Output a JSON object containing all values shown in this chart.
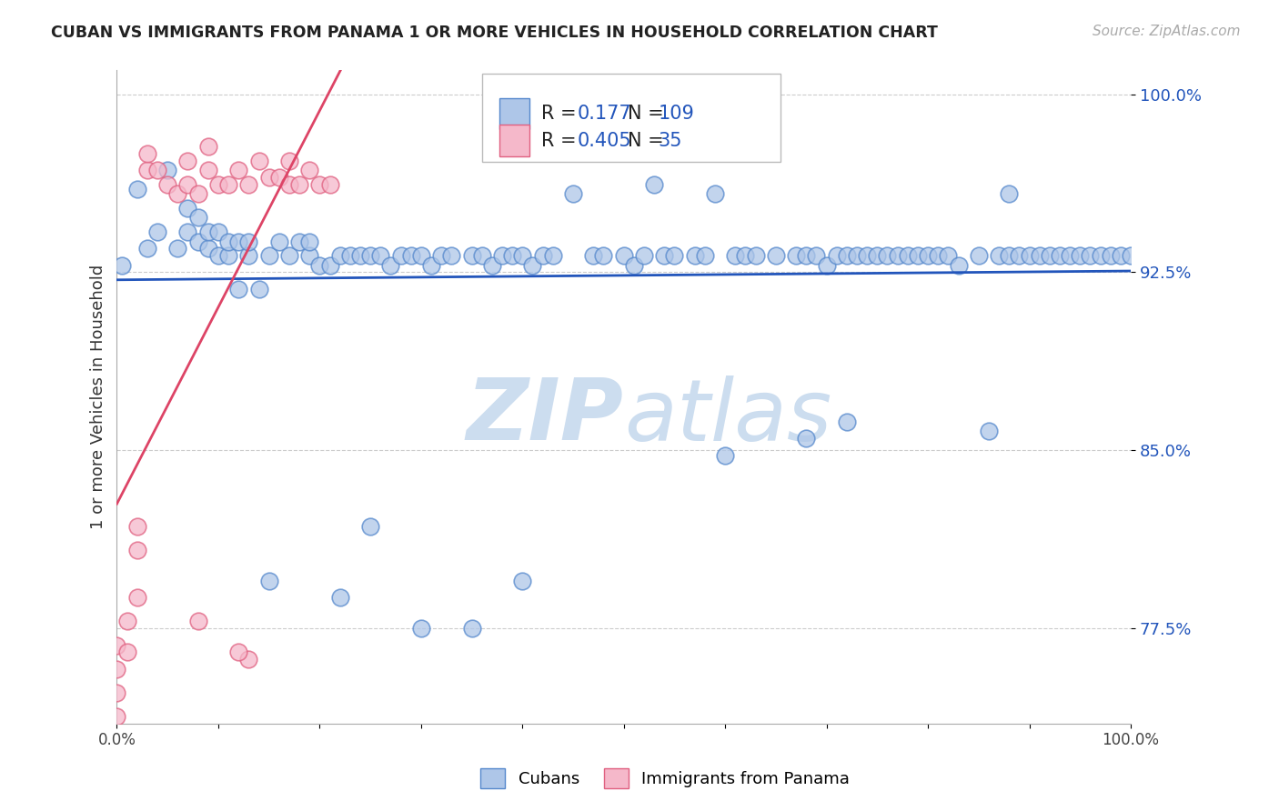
{
  "title": "CUBAN VS IMMIGRANTS FROM PANAMA 1 OR MORE VEHICLES IN HOUSEHOLD CORRELATION CHART",
  "source": "Source: ZipAtlas.com",
  "ylabel": "1 or more Vehicles in Household",
  "xlim": [
    0,
    1
  ],
  "ylim": [
    0.735,
    1.01
  ],
  "yticks": [
    0.775,
    0.85,
    0.925,
    1.0
  ],
  "ytick_labels": [
    "77.5%",
    "85.0%",
    "92.5%",
    "100.0%"
  ],
  "xticks": [
    0.0,
    0.1,
    0.2,
    0.3,
    0.4,
    0.5,
    0.6,
    0.7,
    0.8,
    0.9,
    1.0
  ],
  "xtick_labels": [
    "0.0%",
    "",
    "",
    "",
    "",
    "",
    "",
    "",
    "",
    "",
    "100.0%"
  ],
  "cubans_legend": "Cubans",
  "panama_legend": "Immigrants from Panama",
  "R_blue": 0.177,
  "N_blue": 109,
  "R_pink": 0.405,
  "N_pink": 35,
  "blue_color": "#aec6e8",
  "blue_edge": "#5588cc",
  "pink_color": "#f5b8ca",
  "pink_edge": "#e06080",
  "blue_line_color": "#2255bb",
  "pink_line_color": "#dd4466",
  "background_color": "#ffffff",
  "watermark_color": "#ccddef",
  "grid_color": "#cccccc",
  "blue_x": [
    0.005,
    0.02,
    0.03,
    0.04,
    0.05,
    0.06,
    0.07,
    0.07,
    0.08,
    0.08,
    0.09,
    0.09,
    0.1,
    0.1,
    0.11,
    0.11,
    0.12,
    0.12,
    0.13,
    0.13,
    0.14,
    0.15,
    0.16,
    0.17,
    0.18,
    0.19,
    0.19,
    0.2,
    0.21,
    0.22,
    0.23,
    0.24,
    0.25,
    0.26,
    0.27,
    0.28,
    0.29,
    0.3,
    0.31,
    0.32,
    0.33,
    0.35,
    0.36,
    0.37,
    0.38,
    0.39,
    0.4,
    0.41,
    0.42,
    0.43,
    0.45,
    0.47,
    0.48,
    0.5,
    0.51,
    0.52,
    0.53,
    0.54,
    0.55,
    0.57,
    0.58,
    0.59,
    0.6,
    0.61,
    0.62,
    0.63,
    0.65,
    0.67,
    0.68,
    0.69,
    0.7,
    0.71,
    0.72,
    0.73,
    0.74,
    0.75,
    0.76,
    0.77,
    0.78,
    0.79,
    0.8,
    0.81,
    0.82,
    0.83,
    0.85,
    0.86,
    0.87,
    0.88,
    0.88,
    0.89,
    0.9,
    0.91,
    0.92,
    0.93,
    0.94,
    0.95,
    0.96,
    0.97,
    0.98,
    0.99,
    1.0,
    0.72,
    0.68,
    0.15,
    0.25,
    0.3,
    0.35,
    0.4,
    0.22
  ],
  "blue_y": [
    0.928,
    0.96,
    0.935,
    0.942,
    0.968,
    0.935,
    0.942,
    0.952,
    0.938,
    0.948,
    0.935,
    0.942,
    0.932,
    0.942,
    0.932,
    0.938,
    0.918,
    0.938,
    0.932,
    0.938,
    0.918,
    0.932,
    0.938,
    0.932,
    0.938,
    0.932,
    0.938,
    0.928,
    0.928,
    0.932,
    0.932,
    0.932,
    0.932,
    0.932,
    0.928,
    0.932,
    0.932,
    0.932,
    0.928,
    0.932,
    0.932,
    0.932,
    0.932,
    0.928,
    0.932,
    0.932,
    0.932,
    0.928,
    0.932,
    0.932,
    0.958,
    0.932,
    0.932,
    0.932,
    0.928,
    0.932,
    0.962,
    0.932,
    0.932,
    0.932,
    0.932,
    0.958,
    0.848,
    0.932,
    0.932,
    0.932,
    0.932,
    0.932,
    0.932,
    0.932,
    0.928,
    0.932,
    0.932,
    0.932,
    0.932,
    0.932,
    0.932,
    0.932,
    0.932,
    0.932,
    0.932,
    0.932,
    0.932,
    0.928,
    0.932,
    0.858,
    0.932,
    0.932,
    0.958,
    0.932,
    0.932,
    0.932,
    0.932,
    0.932,
    0.932,
    0.932,
    0.932,
    0.932,
    0.932,
    0.932,
    0.932,
    0.862,
    0.855,
    0.795,
    0.818,
    0.775,
    0.775,
    0.795,
    0.788
  ],
  "pink_x": [
    0.0,
    0.0,
    0.0,
    0.0,
    0.01,
    0.01,
    0.02,
    0.02,
    0.03,
    0.04,
    0.05,
    0.06,
    0.07,
    0.07,
    0.08,
    0.09,
    0.09,
    0.1,
    0.11,
    0.12,
    0.13,
    0.14,
    0.15,
    0.16,
    0.17,
    0.18,
    0.19,
    0.2,
    0.21,
    0.02,
    0.03,
    0.17,
    0.08,
    0.13,
    0.12
  ],
  "pink_y": [
    0.738,
    0.748,
    0.758,
    0.768,
    0.765,
    0.778,
    0.808,
    0.818,
    0.968,
    0.968,
    0.962,
    0.958,
    0.962,
    0.972,
    0.958,
    0.968,
    0.978,
    0.962,
    0.962,
    0.968,
    0.962,
    0.972,
    0.965,
    0.965,
    0.962,
    0.962,
    0.968,
    0.962,
    0.962,
    0.788,
    0.975,
    0.972,
    0.778,
    0.762,
    0.765
  ]
}
